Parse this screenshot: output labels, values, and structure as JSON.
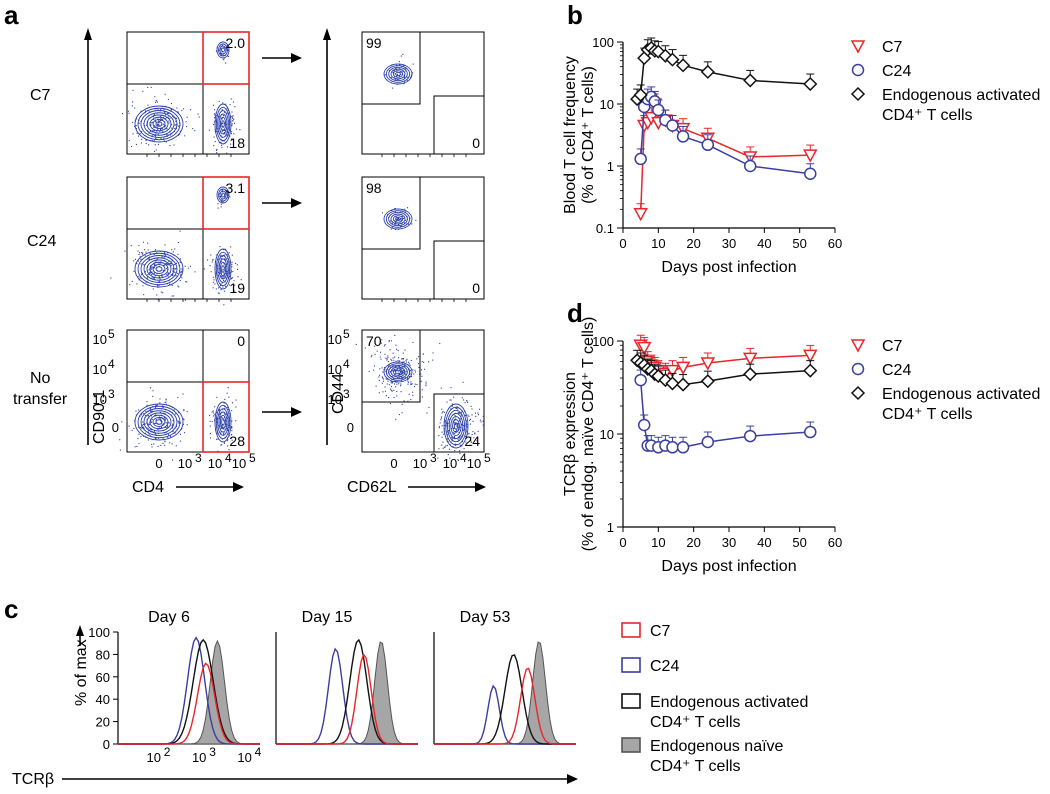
{
  "figure": {
    "panels": {
      "a": "a",
      "b": "b",
      "c": "c",
      "d": "d"
    }
  },
  "panel_a": {
    "row_labels": [
      "C7",
      "C24",
      "No",
      "transfer"
    ],
    "left_x_axis": "CD4",
    "left_y_axis": "CD90.1",
    "right_x_axis": "CD62L",
    "right_y_axis": "CD44",
    "left_x_ticks": [
      "0",
      "10",
      "3",
      "10",
      "4",
      "10",
      "5"
    ],
    "left_y_ticks": [
      "10",
      "5",
      "10",
      "4",
      "10",
      "3",
      "0"
    ],
    "right_x_ticks": [
      "0",
      "10",
      "3",
      "10",
      "4",
      "10",
      "5"
    ],
    "right_y_ticks": [
      "10",
      "5",
      "10",
      "4",
      "10",
      "3",
      "0"
    ],
    "left_gates": [
      {
        "upper_right": "2.0",
        "lower_right": "18"
      },
      {
        "upper_right": "3.1",
        "lower_right": "19"
      },
      {
        "upper_right": "0",
        "lower_right": "28"
      }
    ],
    "right_gates": [
      {
        "upper_left": "99",
        "lower_right": "0"
      },
      {
        "upper_left": "98",
        "lower_right": "0"
      },
      {
        "upper_left": "70",
        "lower_right": "24"
      }
    ]
  },
  "chart_data": [
    {
      "id": "b",
      "type": "line",
      "title": "",
      "xlabel": "Days post infection",
      "ylabel_line1": "Blood T cell frequency",
      "ylabel_line2": "(% of CD4⁺ T cells)",
      "yscale": "log",
      "xlim": [
        0,
        60
      ],
      "ylim": [
        0.1,
        100
      ],
      "x_ticks": [
        "0",
        "10",
        "20",
        "30",
        "40",
        "50",
        "60"
      ],
      "y_ticks": [
        "0.1",
        "1",
        "10",
        "100"
      ],
      "series": [
        {
          "name": "C7",
          "color": "#e8262b",
          "marker": "triangle-down",
          "x": [
            5,
            6,
            7,
            8,
            9,
            10,
            12,
            14,
            17,
            24,
            36,
            53
          ],
          "y": [
            0.17,
            4.5,
            5.0,
            6.0,
            10.0,
            5.0,
            5.5,
            4.5,
            4.0,
            2.8,
            1.4,
            1.5
          ]
        },
        {
          "name": "C24",
          "color": "#3a3f9f",
          "marker": "circle",
          "x": [
            5,
            6,
            7,
            8,
            9,
            10,
            12,
            14,
            17,
            24,
            36,
            53
          ],
          "y": [
            1.3,
            9.0,
            12.0,
            13.0,
            11.0,
            8.0,
            5.5,
            4.5,
            3.0,
            2.2,
            1.0,
            0.75
          ]
        },
        {
          "name": "Endogenous activated",
          "name_line2": "CD4⁺ T cells",
          "color": "#111111",
          "marker": "diamond",
          "x": [
            4,
            5,
            6,
            7,
            8,
            9,
            10,
            12,
            14,
            17,
            24,
            36,
            53
          ],
          "y": [
            12,
            14,
            55,
            75,
            80,
            72,
            70,
            60,
            52,
            42,
            33,
            24,
            21
          ]
        }
      ]
    },
    {
      "id": "d",
      "type": "line",
      "title": "",
      "xlabel": "Days post infection",
      "ylabel_line1": "TCRβ expression",
      "ylabel_line2": "(% of endog. naïve CD4⁺ T cells)",
      "yscale": "log",
      "xlim": [
        0,
        60
      ],
      "ylim": [
        1,
        100
      ],
      "x_ticks": [
        "0",
        "10",
        "20",
        "30",
        "40",
        "50",
        "60"
      ],
      "y_ticks": [
        "1",
        "10",
        "100"
      ],
      "series": [
        {
          "name": "C7",
          "color": "#e8262b",
          "marker": "triangle-down",
          "x": [
            5,
            6,
            7,
            8,
            9,
            10,
            12,
            14,
            17,
            24,
            36,
            53
          ],
          "y": [
            90,
            85,
            60,
            55,
            52,
            48,
            45,
            48,
            52,
            58,
            65,
            70
          ]
        },
        {
          "name": "C24",
          "color": "#3a3f9f",
          "marker": "circle",
          "x": [
            5,
            6,
            7,
            8,
            10,
            12,
            14,
            17,
            24,
            36,
            53
          ],
          "y": [
            38,
            12.5,
            7.5,
            7.5,
            7.2,
            7.5,
            7.2,
            7.2,
            8.2,
            9.5,
            10.5
          ]
        },
        {
          "name": "Endogenous activated",
          "name_line2": "CD4⁺ T cells",
          "color": "#111111",
          "marker": "diamond",
          "x": [
            4,
            5,
            6,
            7,
            8,
            9,
            10,
            12,
            14,
            17,
            24,
            36,
            53
          ],
          "y": [
            62,
            58,
            55,
            50,
            48,
            44,
            42,
            38,
            35,
            34,
            37,
            44,
            48
          ]
        }
      ]
    }
  ],
  "panel_c": {
    "y_axis": "% of max",
    "x_axis": "TCRβ",
    "y_ticks": [
      "100",
      "80",
      "60",
      "40",
      "20",
      "0"
    ],
    "x_ticks": [
      "10",
      "2",
      "10",
      "3",
      "10",
      "4"
    ],
    "days": [
      "Day 6",
      "Day 15",
      "Day 53"
    ],
    "legend": [
      {
        "label": "C7",
        "color": "#e8262b"
      },
      {
        "label": "C24",
        "color": "#3a3f9f"
      },
      {
        "label": "Endogenous activated",
        "label2": "CD4⁺ T cells",
        "color": "#111111"
      },
      {
        "label": "Endogenous naïve",
        "label2": "CD4⁺ T cells",
        "color": "#9e9e9e"
      }
    ]
  }
}
